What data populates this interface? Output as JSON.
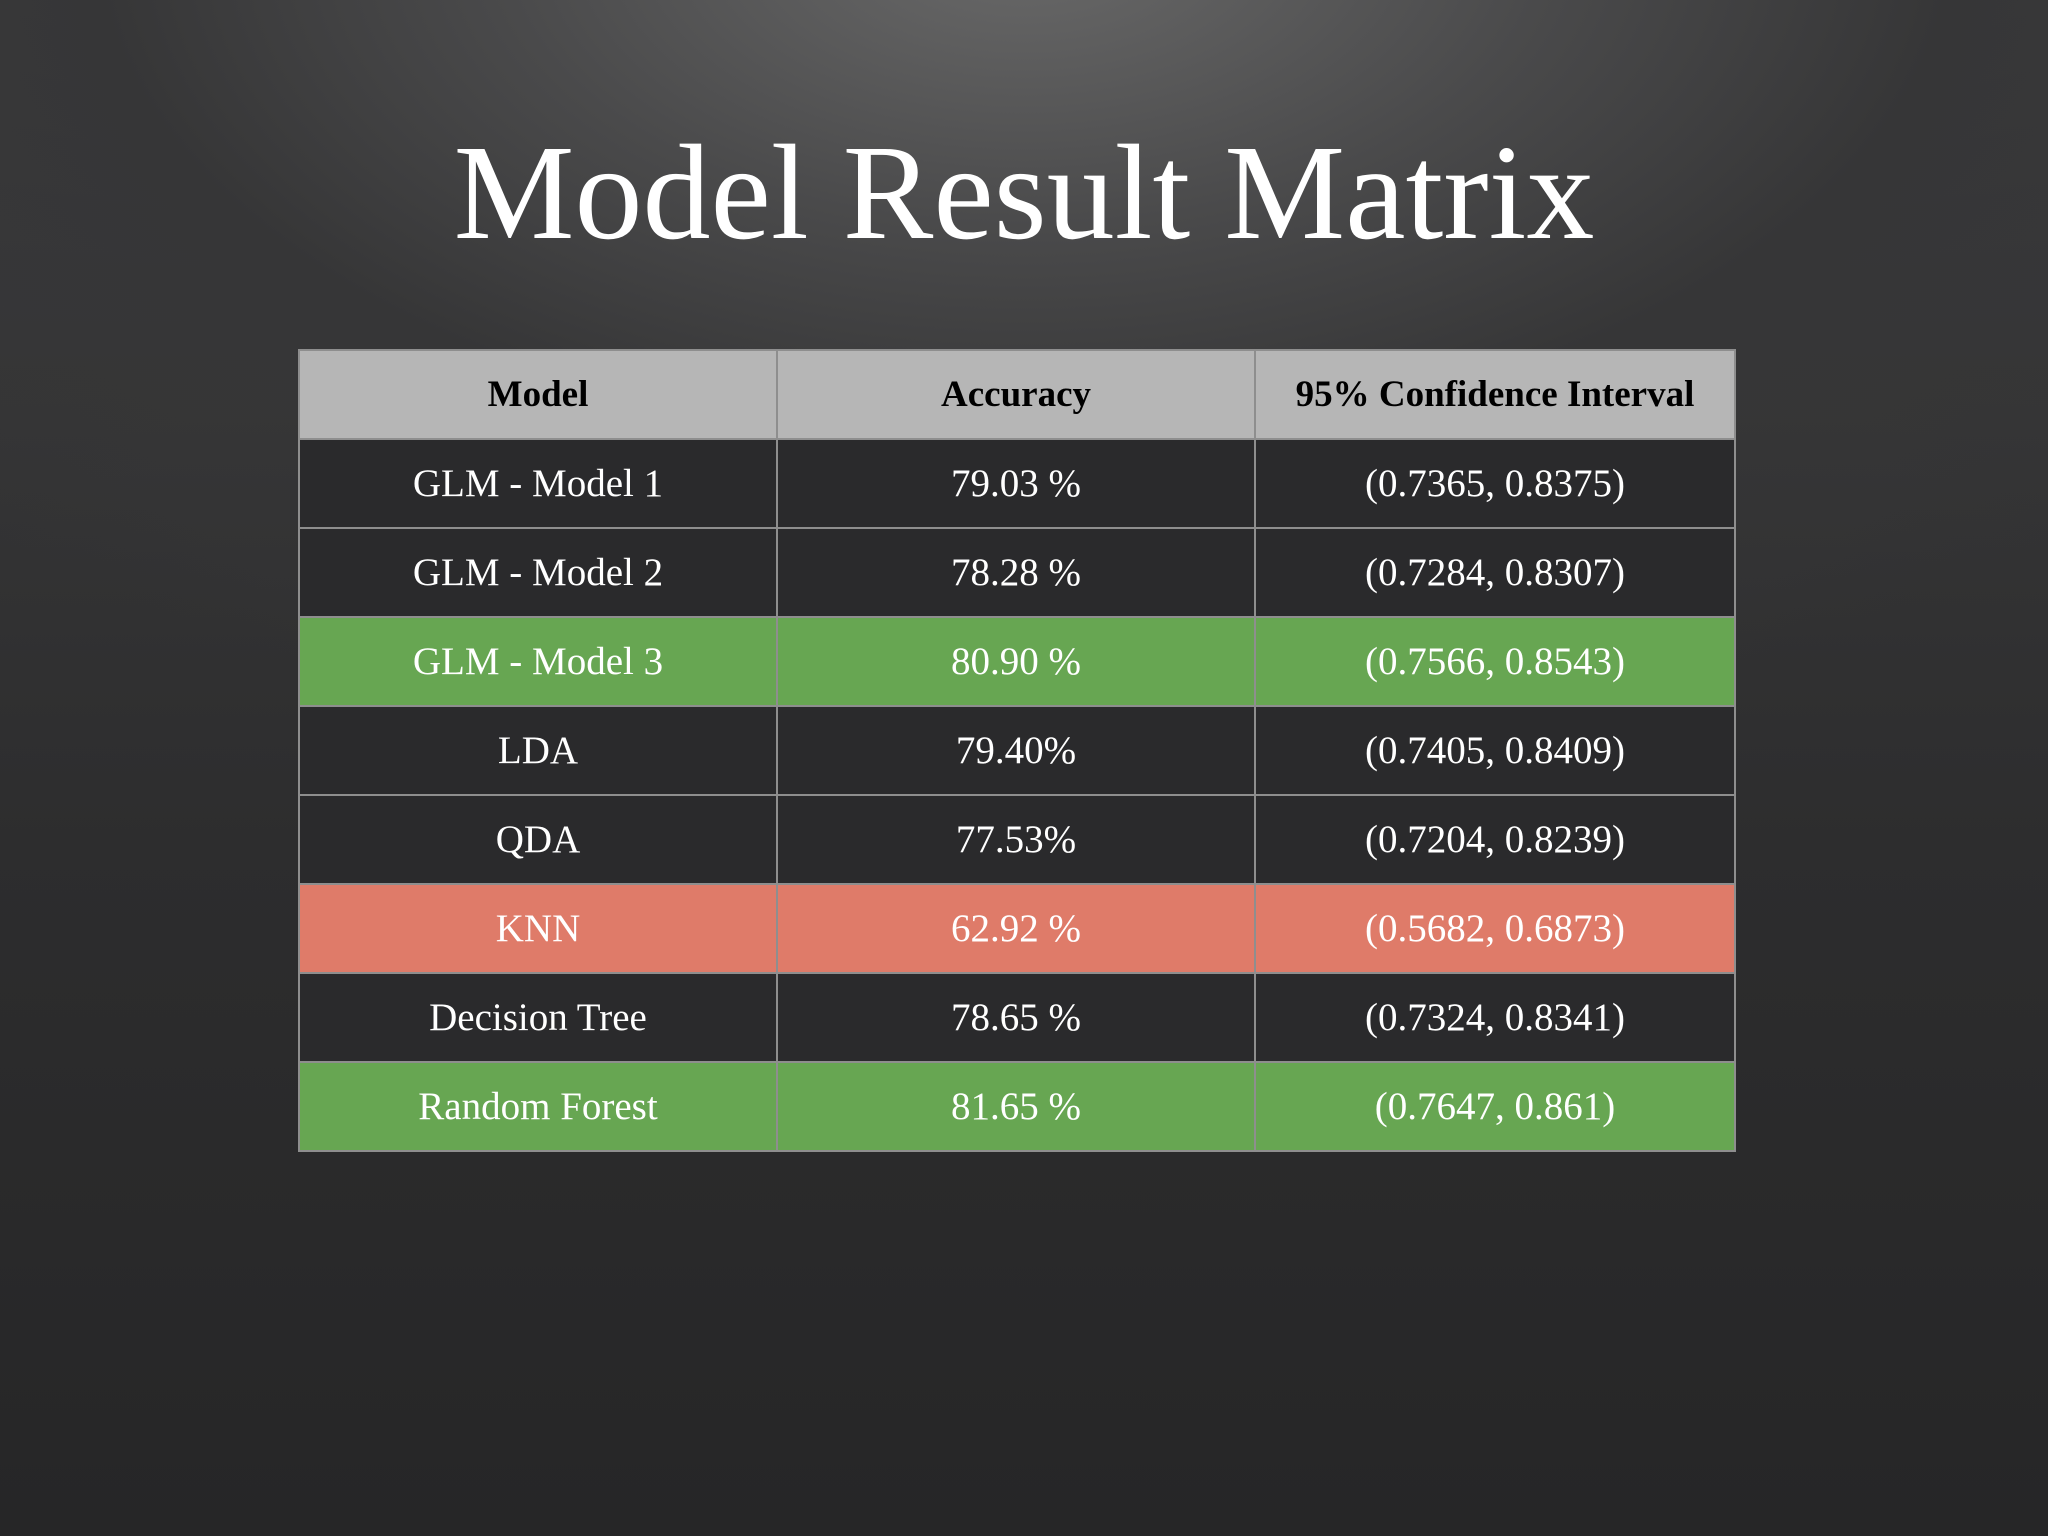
{
  "slide": {
    "title": "Model Result Matrix"
  },
  "table": {
    "headers": [
      "Model",
      "Accuracy",
      "95% Confidence Interval"
    ],
    "rows": [
      {
        "model": "GLM - Model 1",
        "accuracy": "79.03 %",
        "ci": "(0.7365, 0.8375)",
        "highlight": "none"
      },
      {
        "model": "GLM - Model 2",
        "accuracy": "78.28 %",
        "ci": "(0.7284, 0.8307)",
        "highlight": "none"
      },
      {
        "model": "GLM - Model 3",
        "accuracy": "80.90 %",
        "ci": "(0.7566, 0.8543)",
        "highlight": "green"
      },
      {
        "model": "LDA",
        "accuracy": "79.40%",
        "ci": "(0.7405, 0.8409)",
        "highlight": "none"
      },
      {
        "model": "QDA",
        "accuracy": "77.53%",
        "ci": "(0.7204, 0.8239)",
        "highlight": "none"
      },
      {
        "model": "KNN",
        "accuracy": "62.92 %",
        "ci": "(0.5682, 0.6873)",
        "highlight": "red"
      },
      {
        "model": "Decision Tree",
        "accuracy": "78.65 %",
        "ci": "(0.7324, 0.8341)",
        "highlight": "none"
      },
      {
        "model": "Random Forest",
        "accuracy": "81.65 %",
        "ci": "(0.7647, 0.861)",
        "highlight": "green"
      }
    ]
  },
  "colors": {
    "header_bg": "#b6b6b6",
    "row_bg": "#2a2a2c",
    "highlight_green": "#67a652",
    "highlight_red": "#df7b69",
    "grid_line": "#8e8e8e",
    "text": "#ffffff"
  }
}
